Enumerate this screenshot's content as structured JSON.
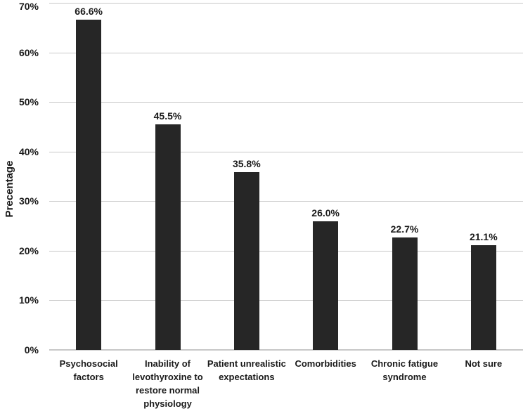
{
  "chart_data": {
    "type": "bar",
    "title": "",
    "categories": [
      "Psychosocial factors",
      "Inability of levothyroxine to restore normal physiology",
      "Patient unrealistic expectations",
      "Comorbidities",
      "Chronic fatigue syndrome",
      "Not sure"
    ],
    "values": [
      66.6,
      45.5,
      35.8,
      26.0,
      22.7,
      21.1
    ],
    "value_labels": [
      "66.6%",
      "45.5%",
      "35.8%",
      "26.0%",
      "22.7%",
      "21.1%"
    ],
    "xlabel": "",
    "ylabel": "Precentage",
    "ylim": [
      0,
      70
    ],
    "yticks": [
      0,
      10,
      20,
      30,
      40,
      50,
      60,
      70
    ],
    "ytick_labels": [
      "0%",
      "10%",
      "20%",
      "30%",
      "40%",
      "50%",
      "60%",
      "70%"
    ],
    "grid": "horizontal-on",
    "legend": "none",
    "bar_color": "#262626",
    "gridline_color": "#c8c8c8",
    "background_color": "#ffffff",
    "text_color": "#1a1a1a"
  }
}
